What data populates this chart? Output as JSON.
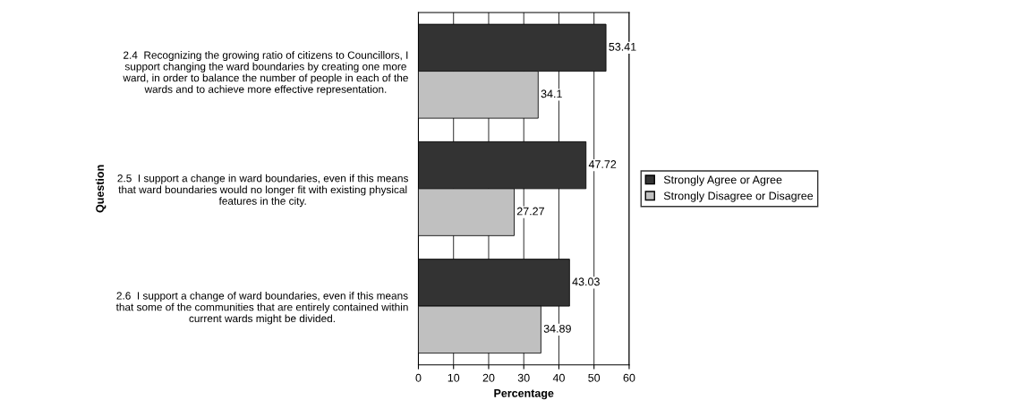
{
  "chart_data": {
    "type": "bar",
    "orientation": "horizontal",
    "categories": [
      "2.4  Recognizing the growing ratio of citizens to Councillors, I\nsupport changing the ward boundaries by creating one more\nward, in order to balance the number of people in each of the\nwards and to achieve more effective representation.",
      "2.5  I support a change in ward boundaries, even if this means\nthat ward boundaries would no longer fit with existing physical\nfeatures in the city.",
      "2.6  I support a change of ward boundaries, even if this means\nthat some of the communities that are entirely contained within\ncurrent wards might be divided."
    ],
    "series": [
      {
        "name": "Strongly Agree or Agree",
        "color": "#333333",
        "values": [
          53.41,
          47.72,
          43.03
        ]
      },
      {
        "name": "Strongly Disagree or Disagree",
        "color": "#c0c0c0",
        "values": [
          34.1,
          27.27,
          34.89
        ]
      }
    ],
    "xlabel": "Percentage",
    "ylabel": "Question",
    "xlim": [
      0,
      60
    ],
    "xticks": [
      0,
      10,
      20,
      30,
      40,
      50,
      60
    ],
    "grid": "x",
    "legend": "right",
    "data_labels": true
  }
}
